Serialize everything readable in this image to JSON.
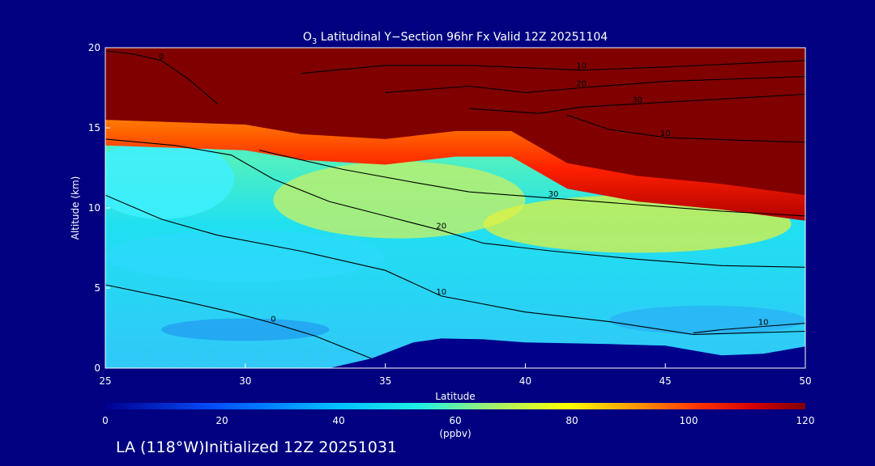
{
  "chart_data": {
    "type": "heatmap",
    "title": {
      "species_main": "O",
      "species_sub": "3",
      "rest": " Latitudinal Y−Section 96hr  Fx Valid 12Z 20251104"
    },
    "xlabel": "Latitude",
    "ylabel": "Altitude (km)",
    "xlim": [
      25,
      50
    ],
    "ylim": [
      0,
      20
    ],
    "x_ticks": [
      "25",
      "30",
      "35",
      "40",
      "45",
      "50"
    ],
    "y_ticks": [
      "0",
      "5",
      "10",
      "15",
      "20"
    ],
    "colorbar": {
      "label": "(ppbv)",
      "range": [
        0,
        120
      ],
      "ticks": [
        "0",
        "20",
        "40",
        "60",
        "80",
        "100",
        "120"
      ]
    },
    "colors": {
      "background": "#000080",
      "text": "#ffffff",
      "contour": "#000000",
      "terrain": "#00008b"
    },
    "terrain_top_km": [
      [
        25,
        0
      ],
      [
        33,
        0
      ],
      [
        34.5,
        0.6
      ],
      [
        36,
        1.6
      ],
      [
        37,
        1.85
      ],
      [
        38.5,
        1.8
      ],
      [
        40,
        1.6
      ],
      [
        43,
        1.5
      ],
      [
        45,
        1.4
      ],
      [
        47,
        0.8
      ],
      [
        48.5,
        0.9
      ],
      [
        50,
        1.35
      ]
    ],
    "tropopause_km": [
      [
        25,
        15.5
      ],
      [
        30,
        15.2
      ],
      [
        32,
        14.6
      ],
      [
        35,
        14.3
      ],
      [
        37.5,
        14.8
      ],
      [
        39.5,
        14.8
      ],
      [
        41.5,
        12.8
      ],
      [
        44,
        12.0
      ],
      [
        47,
        11.5
      ],
      [
        50,
        10.8
      ]
    ],
    "contours": [
      {
        "label": "0",
        "points": [
          [
            25,
            5.2
          ],
          [
            27.5,
            4.3
          ],
          [
            29.5,
            3.5
          ],
          [
            31,
            2.8
          ],
          [
            32.5,
            2.0
          ],
          [
            33.5,
            1.3
          ],
          [
            34.5,
            0.6
          ]
        ]
      },
      {
        "label": "10",
        "points": [
          [
            25,
            10.8
          ],
          [
            27,
            9.3
          ],
          [
            29,
            8.3
          ],
          [
            32,
            7.3
          ],
          [
            35,
            6.1
          ],
          [
            37,
            4.5
          ],
          [
            40,
            3.5
          ],
          [
            43,
            2.9
          ],
          [
            46,
            2.1
          ],
          [
            48,
            2.2
          ],
          [
            50,
            2.3
          ]
        ]
      },
      {
        "label": "20",
        "points": [
          [
            25,
            14.3
          ],
          [
            27.5,
            13.9
          ],
          [
            29.5,
            13.3
          ],
          [
            31,
            11.8
          ],
          [
            33,
            10.4
          ],
          [
            35,
            9.5
          ],
          [
            37,
            8.6
          ],
          [
            38.5,
            7.8
          ],
          [
            41,
            7.3
          ],
          [
            44,
            6.8
          ],
          [
            47,
            6.4
          ],
          [
            50,
            6.3
          ]
        ]
      },
      {
        "label": "30",
        "points": [
          [
            30.5,
            13.6
          ],
          [
            33.5,
            12.4
          ],
          [
            36,
            11.6
          ],
          [
            38,
            11.0
          ],
          [
            41,
            10.6
          ],
          [
            44,
            10.2
          ],
          [
            47,
            9.8
          ],
          [
            50,
            9.5
          ]
        ]
      },
      {
        "label": "10",
        "points": [
          [
            41.5,
            15.8
          ],
          [
            43,
            14.9
          ],
          [
            45,
            14.4
          ],
          [
            48,
            14.2
          ],
          [
            50,
            14.1
          ]
        ]
      },
      {
        "label": "10",
        "points": [
          [
            32,
            18.4
          ],
          [
            35,
            18.9
          ],
          [
            38,
            18.9
          ],
          [
            42,
            18.6
          ],
          [
            45,
            18.8
          ],
          [
            50,
            19.2
          ]
        ]
      },
      {
        "label": "20",
        "points": [
          [
            35,
            17.2
          ],
          [
            38,
            17.6
          ],
          [
            40,
            17.2
          ],
          [
            42,
            17.5
          ],
          [
            45,
            17.9
          ],
          [
            50,
            18.2
          ]
        ]
      },
      {
        "label": "30",
        "points": [
          [
            38,
            16.2
          ],
          [
            40.5,
            15.9
          ],
          [
            42,
            16.3
          ],
          [
            44,
            16.5
          ],
          [
            47,
            16.8
          ],
          [
            50,
            17.1
          ]
        ]
      },
      {
        "label": "10",
        "points": [
          [
            46,
            2.2
          ],
          [
            47,
            2.4
          ],
          [
            48.5,
            2.6
          ],
          [
            50,
            2.8
          ]
        ]
      },
      {
        "label": "0",
        "points": [
          [
            25,
            19.8
          ],
          [
            26,
            19.6
          ],
          [
            27,
            19.2
          ],
          [
            28,
            18.0
          ],
          [
            29,
            16.5
          ]
        ]
      }
    ]
  },
  "footer": {
    "text": "LA (118°W)Initialized 12Z 20251031"
  }
}
